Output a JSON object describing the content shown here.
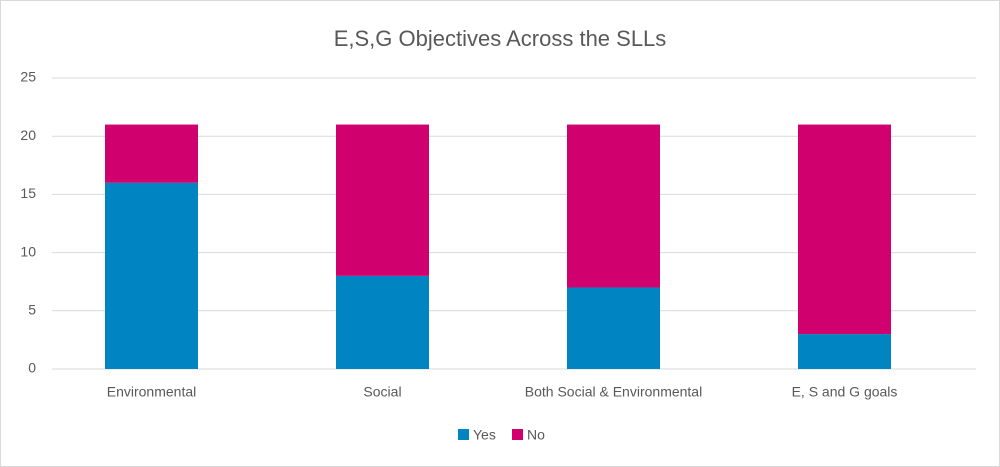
{
  "chart_data": {
    "type": "stacked-bar",
    "title": "E,S,G Objectives Across the SLLs",
    "categories": [
      "Environmental",
      "Social",
      "Both Social & Environmental",
      "E, S and G goals"
    ],
    "series": [
      {
        "name": "Yes",
        "color": "#0084c2",
        "values": [
          16,
          8,
          7,
          3
        ]
      },
      {
        "name": "No",
        "color": "#d1006f",
        "values": [
          5,
          13,
          14,
          18
        ]
      }
    ],
    "ylim": [
      0,
      25
    ],
    "yticks": [
      0,
      5,
      10,
      15,
      20,
      25
    ],
    "grid": true,
    "legend": "bottom"
  }
}
